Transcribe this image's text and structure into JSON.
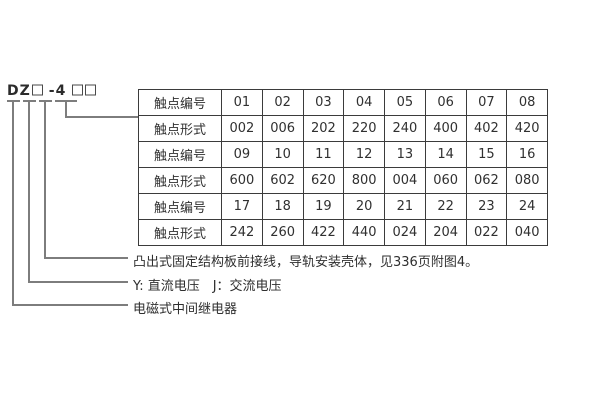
{
  "model": {
    "prefix": "DZ",
    "mid": "-4"
  },
  "legend": {
    "structure": "凸出式固定结构板前接线，导轨安装壳体，见336页附图4。",
    "voltage": "Y: 直流电压　J：交流电压",
    "relay_type": "电磁式中间继电器"
  },
  "table": {
    "label_contact_number": "触点编号",
    "label_contact_form": "触点形式",
    "rows": [
      {
        "label": "触点编号",
        "cells": [
          "01",
          "02",
          "03",
          "04",
          "05",
          "06",
          "07",
          "08"
        ]
      },
      {
        "label": "触点形式",
        "cells": [
          "002",
          "006",
          "202",
          "220",
          "240",
          "400",
          "402",
          "420"
        ]
      },
      {
        "label": "触点编号",
        "cells": [
          "09",
          "10",
          "11",
          "12",
          "13",
          "14",
          "15",
          "16"
        ]
      },
      {
        "label": "触点形式",
        "cells": [
          "600",
          "602",
          "620",
          "800",
          "004",
          "060",
          "062",
          "080"
        ]
      },
      {
        "label": "触点编号",
        "cells": [
          "17",
          "18",
          "19",
          "20",
          "21",
          "22",
          "23",
          "24"
        ]
      },
      {
        "label": "触点形式",
        "cells": [
          "242",
          "260",
          "422",
          "440",
          "024",
          "204",
          "022",
          "040"
        ]
      }
    ]
  },
  "colors": {
    "line": "#7d7d7d",
    "table_border": "#3b3b3b",
    "text": "#2f2f2f"
  }
}
